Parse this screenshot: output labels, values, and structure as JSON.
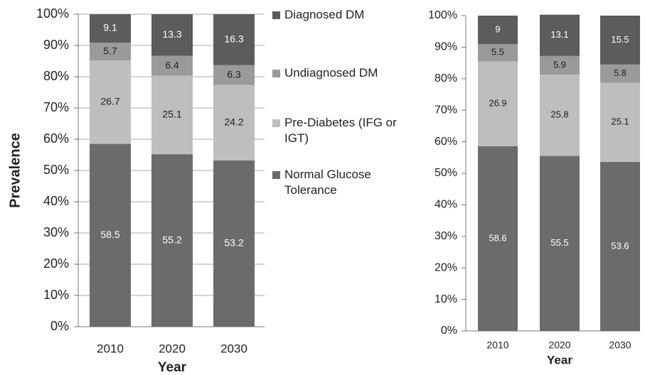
{
  "chart_data": [
    {
      "type": "stacked_bar",
      "y_label": "Prevalence",
      "x_label": "Year",
      "categories": [
        "2010",
        "2020",
        "2030"
      ],
      "series": [
        {
          "name": "Normal Glucose Tolerance",
          "color": "#6b6b6b",
          "values": [
            58.5,
            55.2,
            53.2
          ]
        },
        {
          "name": "Pre-Diabetes (IFG or IGT)",
          "color": "#bebebe",
          "values": [
            26.7,
            25.1,
            24.2
          ]
        },
        {
          "name": "Undiagnosed DM",
          "color": "#9a9a9a",
          "values": [
            5.7,
            6.4,
            6.3
          ]
        },
        {
          "name": "Diagnosed DM",
          "color": "#5c5c5c",
          "values": [
            9.1,
            13.3,
            16.3
          ]
        }
      ],
      "ylim": [
        0,
        100
      ],
      "yticks": [
        {
          "value": 0,
          "label": "0%"
        },
        {
          "value": 10,
          "label": "10%"
        },
        {
          "value": 20,
          "label": "20%"
        },
        {
          "value": 30,
          "label": "30%"
        },
        {
          "value": 40,
          "label": "40%"
        },
        {
          "value": 50,
          "label": "50%"
        },
        {
          "value": 60,
          "label": "60%"
        },
        {
          "value": 70,
          "label": "70%"
        },
        {
          "value": 80,
          "label": "80%"
        },
        {
          "value": 90,
          "label": "90%"
        },
        {
          "value": 100,
          "label": "100%"
        }
      ],
      "grid": true,
      "legend": "right"
    },
    {
      "type": "stacked_bar",
      "x_label": "Year",
      "categories": [
        "2010",
        "2020",
        "2030"
      ],
      "series": [
        {
          "name": "Normal Glucose Tolerance",
          "color": "#6b6b6b",
          "values": [
            58.6,
            55.5,
            53.6
          ]
        },
        {
          "name": "Pre-Diabetes (IFG or IGT)",
          "color": "#bebebe",
          "values": [
            26.9,
            25.8,
            25.1
          ]
        },
        {
          "name": "Undiagnosed DM",
          "color": "#9a9a9a",
          "values": [
            5.5,
            5.9,
            5.8
          ]
        },
        {
          "name": "Diagnosed DM",
          "color": "#5c5c5c",
          "values": [
            9,
            13.1,
            15.5
          ]
        }
      ],
      "ylim": [
        0,
        100
      ],
      "yticks": [
        {
          "value": 0,
          "label": "0%"
        },
        {
          "value": 10,
          "label": "10%"
        },
        {
          "value": 20,
          "label": "20%"
        },
        {
          "value": 30,
          "label": "30%"
        },
        {
          "value": 40,
          "label": "40%"
        },
        {
          "value": 50,
          "label": "50%"
        },
        {
          "value": 60,
          "label": "60%"
        },
        {
          "value": 70,
          "label": "70%"
        },
        {
          "value": 80,
          "label": "80%"
        },
        {
          "value": 90,
          "label": "90%"
        },
        {
          "value": 100,
          "label": "100%"
        }
      ],
      "grid": false
    }
  ]
}
